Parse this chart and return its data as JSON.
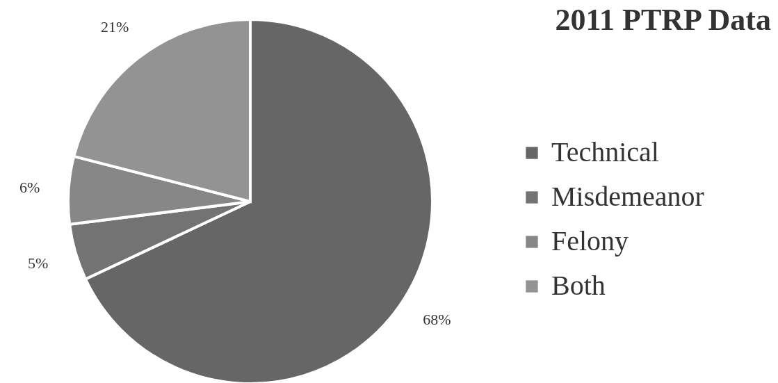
{
  "chart_data": {
    "type": "pie",
    "title": "2011 PTRP Data",
    "categories": [
      "Technical",
      "Misdemeanor",
      "Felony",
      "Both"
    ],
    "values": [
      68,
      5,
      6,
      21
    ],
    "colors": [
      "#666666",
      "#737373",
      "#878787",
      "#939393"
    ],
    "value_labels": [
      "68%",
      "5%",
      "6%",
      "21%"
    ],
    "legend": "right"
  }
}
